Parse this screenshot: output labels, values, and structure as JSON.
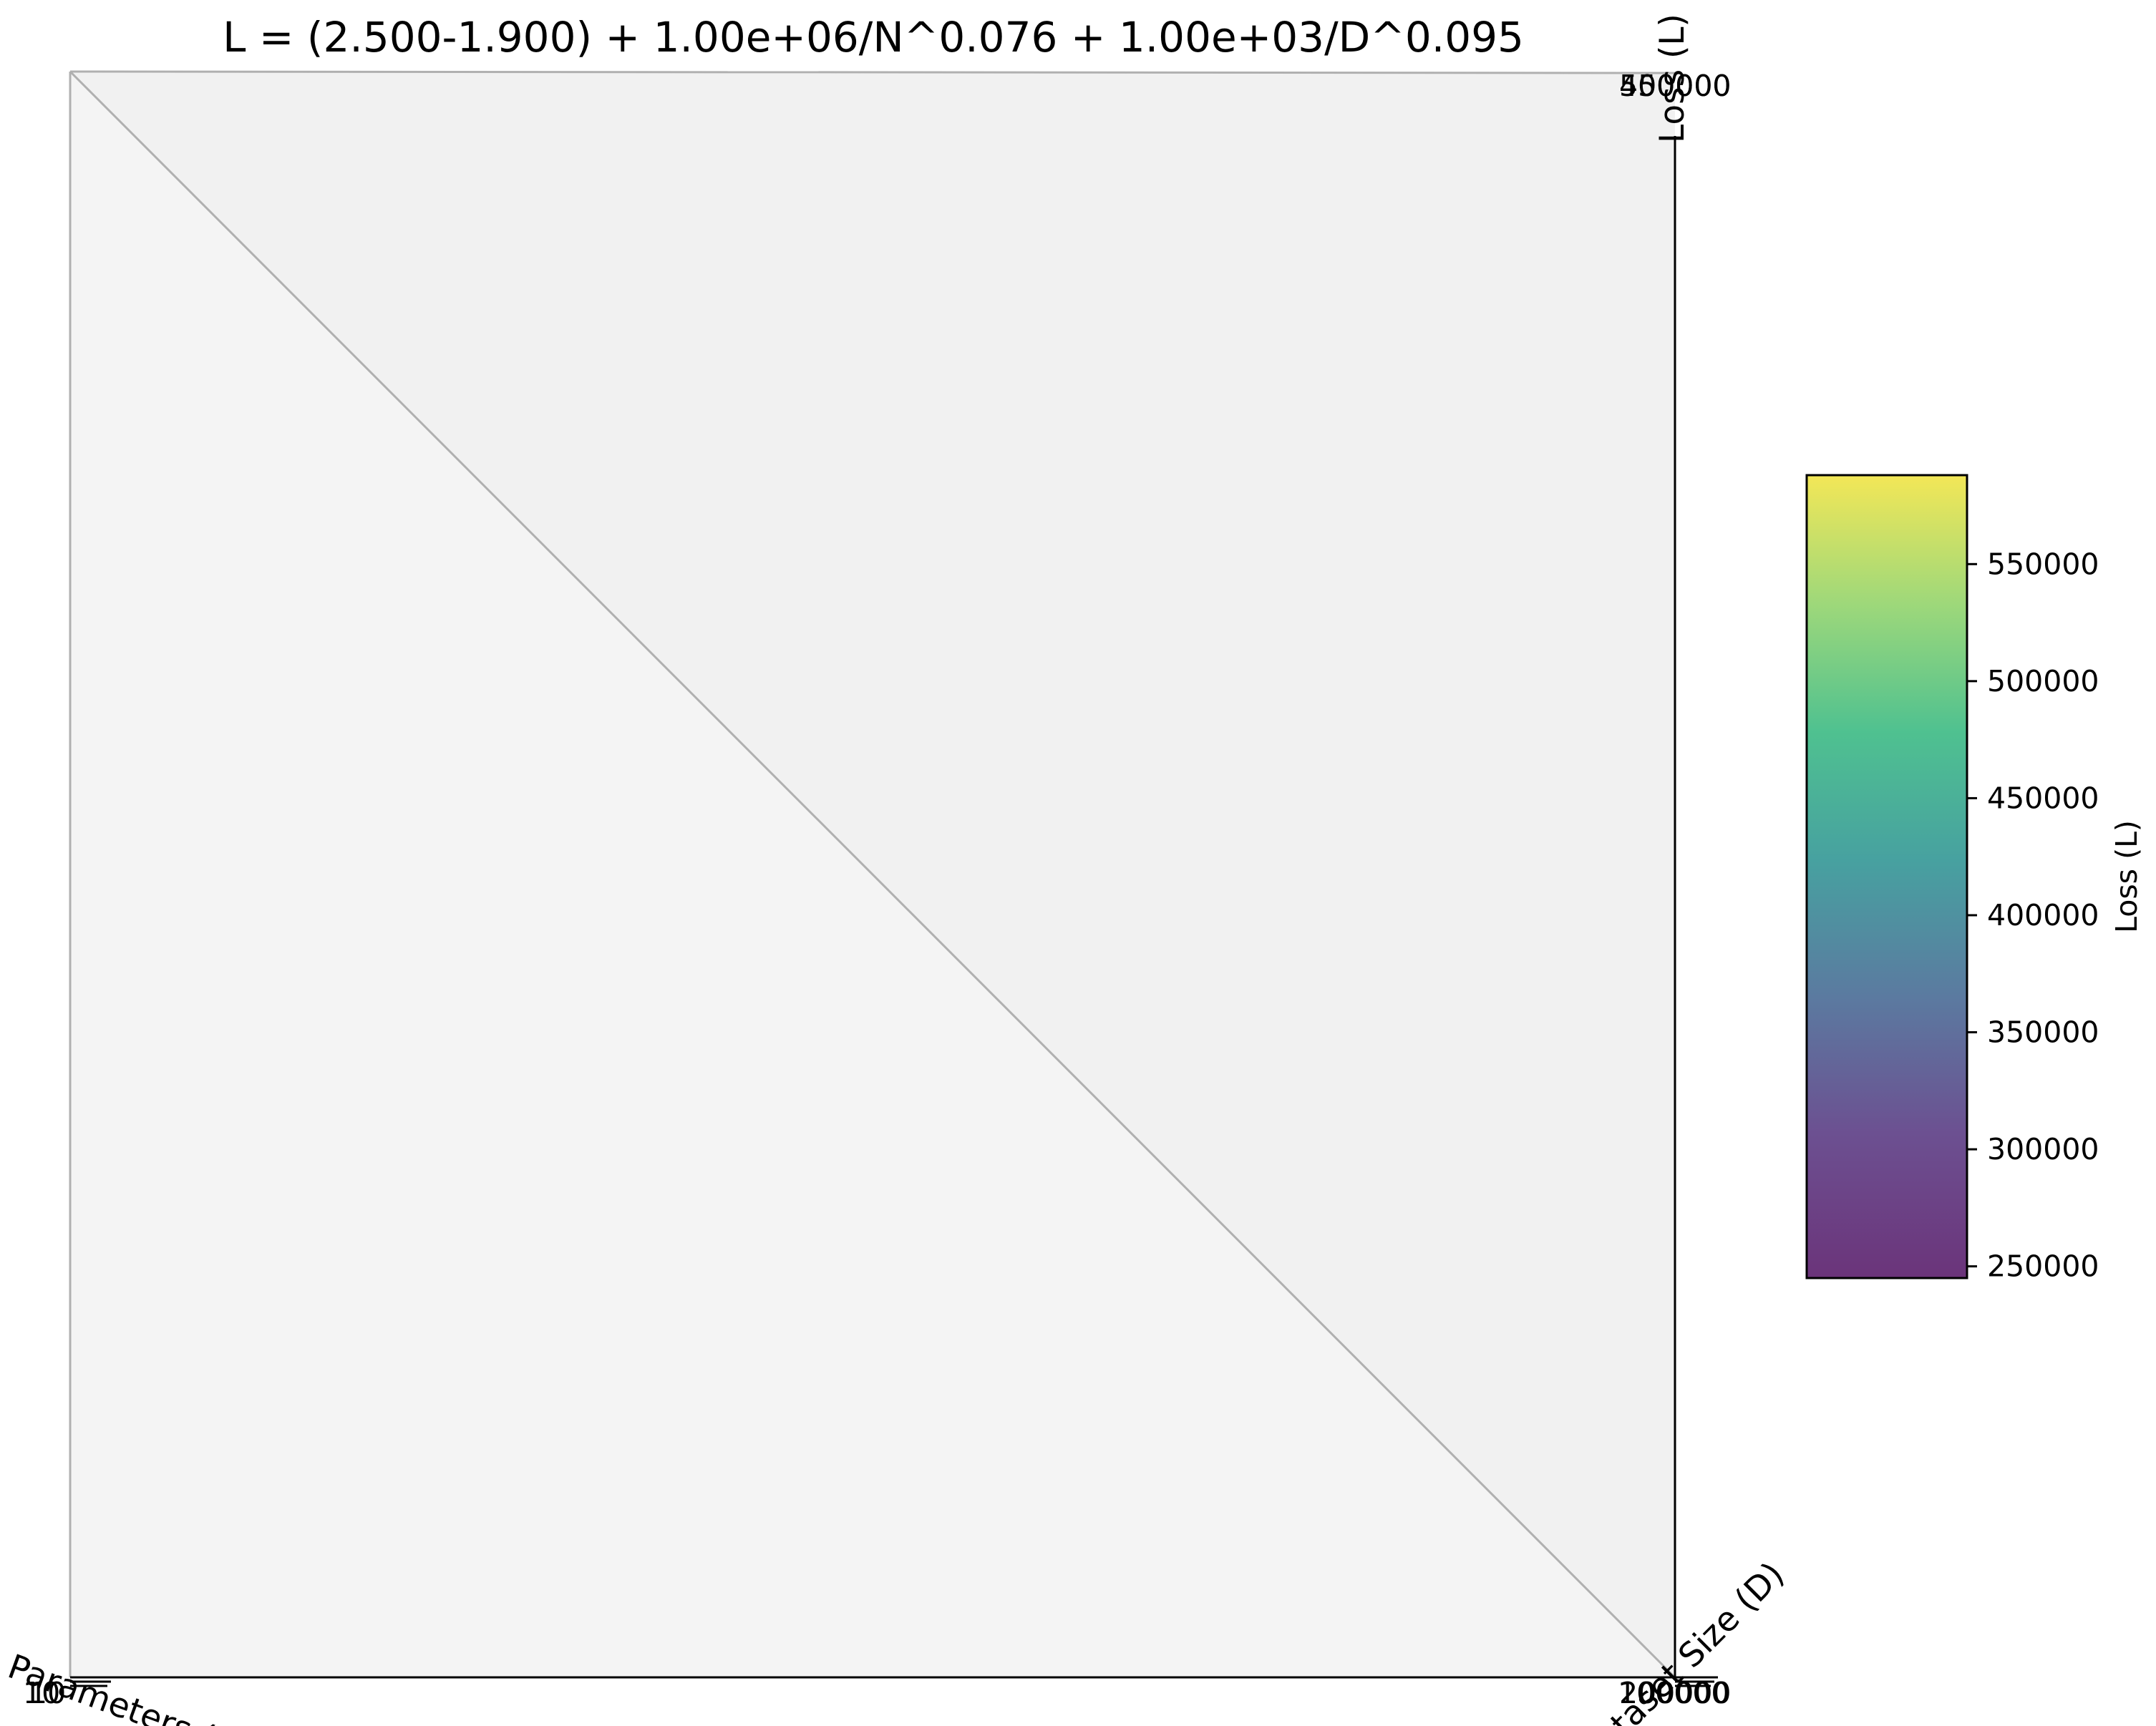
{
  "chart_data": {
    "type": "surface",
    "title": "L = (2.500-1.900) + 1.00e+06/N^0.076 + 1.00e+03/D^0.095",
    "xlabel": "Parameters (N)",
    "ylabel": "Dataset Size (D)",
    "zlabel": "Loss (L)",
    "x_ticks": [
      "10",
      "10"
    ],
    "y_ticks": [
      "100000",
      "200000"
    ],
    "z_ticks": [
      "500000",
      "450000"
    ],
    "colorbar": {
      "label": "Loss (L)",
      "colormap": "viridis",
      "range": [
        245000,
        588000
      ],
      "ticks": [
        250000,
        300000,
        350000,
        400000,
        450000,
        500000,
        550000
      ],
      "tick_labels": [
        "250000",
        "300000",
        "350000",
        "400000",
        "450000",
        "500000",
        "550000"
      ]
    },
    "pane_colors": {
      "left_pane": "#f4f4f4",
      "right_pane": "#f1f1f1",
      "edge": "#b0b0b0"
    }
  }
}
